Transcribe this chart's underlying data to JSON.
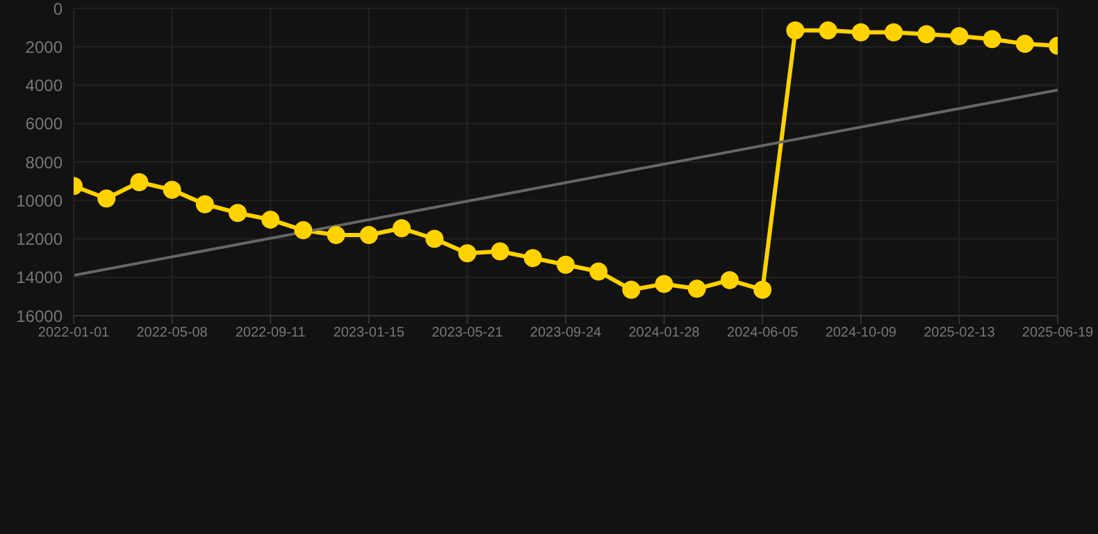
{
  "chart_data": {
    "type": "line",
    "categories": [
      "2022-01-01",
      null,
      null,
      "2022-05-08",
      null,
      null,
      "2022-09-11",
      null,
      null,
      "2023-01-15",
      null,
      null,
      "2023-05-21",
      null,
      null,
      "2023-09-24",
      null,
      null,
      "2024-01-28",
      null,
      null,
      "2024-06-05",
      null,
      null,
      "2024-10-09",
      null,
      null,
      "2025-02-13",
      null,
      null,
      "2025-06-19"
    ],
    "series": [
      {
        "color": "#ffd200",
        "marker": "circle",
        "values": [
          9250,
          9900,
          9050,
          9450,
          10200,
          10650,
          11000,
          11550,
          11800,
          11800,
          11450,
          12000,
          12750,
          12650,
          13000,
          13350,
          13700,
          14650,
          14350,
          14600,
          14150,
          14650,
          1150,
          1150,
          1250,
          1250,
          1350,
          1450,
          1600,
          1850,
          1950
        ]
      },
      {
        "color": "#666666",
        "marker": "none",
        "values": [
          13900,
          null,
          null,
          null,
          null,
          null,
          null,
          null,
          null,
          null,
          null,
          null,
          null,
          null,
          null,
          null,
          null,
          null,
          null,
          null,
          null,
          null,
          null,
          null,
          null,
          null,
          null,
          null,
          null,
          null,
          4250
        ]
      }
    ],
    "ylim": [
      16000,
      0
    ],
    "yticks": [
      0,
      2000,
      4000,
      6000,
      8000,
      10000,
      12000,
      14000,
      16000
    ],
    "grid": true,
    "legend": false
  }
}
